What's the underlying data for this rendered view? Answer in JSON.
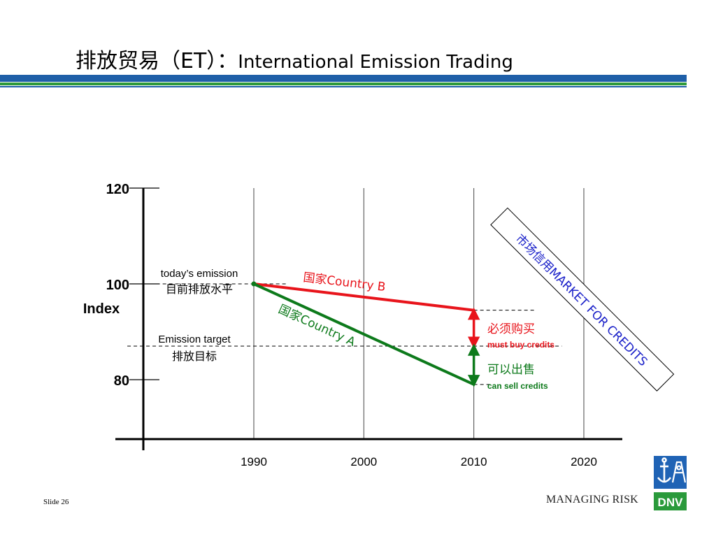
{
  "slide": {
    "title_cn": "排放贸易（",
    "title_et": "ET",
    "title_sep": "）：",
    "title_en": "International Emission Trading",
    "slide_number": "Slide 26",
    "tagline": "MANAGING RISK",
    "logo_text": "DNV"
  },
  "colors": {
    "title_band_blue": "#1f5fa8",
    "title_band_green": "#2e9a3a",
    "country_b": "#e8141b",
    "country_a": "#0d7a1b",
    "market_text": "#1b21c9",
    "logo_blue": "#1f63b5",
    "logo_green": "#2a9a3b"
  },
  "chart_data": {
    "type": "line",
    "title": "",
    "xlabel": "",
    "ylabel": "Index",
    "x_ticks": [
      1990,
      2000,
      2010,
      2020
    ],
    "y_ticks": [
      80,
      100,
      120
    ],
    "xlim": [
      1980,
      2023.5
    ],
    "ylim": [
      68,
      120
    ],
    "grid": "vertical",
    "series": [
      {
        "name": "国家Country B",
        "x": [
          1990,
          2010
        ],
        "y": [
          100,
          94.5
        ]
      },
      {
        "name": "国家Country A",
        "x": [
          1990,
          2010
        ],
        "y": [
          100,
          79
        ]
      }
    ],
    "reference_lines": [
      {
        "label": "today’s emission",
        "label_cn": "目前排放水平",
        "y": 100,
        "x_start": 1980,
        "x_end": 1993
      },
      {
        "label": "Emission target",
        "label_cn": "排放目标",
        "y": 87,
        "x_start": 1978.5,
        "x_end": 2018
      },
      {
        "y": 94.5,
        "x_start": 2010,
        "x_end": 2015.5
      },
      {
        "y": 79,
        "x_start": 2010,
        "x_end": 2011.5
      }
    ],
    "annotations": [
      {
        "label_cn": "必须购买",
        "label_en": "must buy credits",
        "from": 94.5,
        "to": 87,
        "x": 2010
      },
      {
        "label_cn": "可以出售",
        "label_en": "can sell credits",
        "from": 87,
        "to": 79,
        "x": 2010
      }
    ],
    "callout": "市场信用MARKET FOR CREDITS"
  }
}
